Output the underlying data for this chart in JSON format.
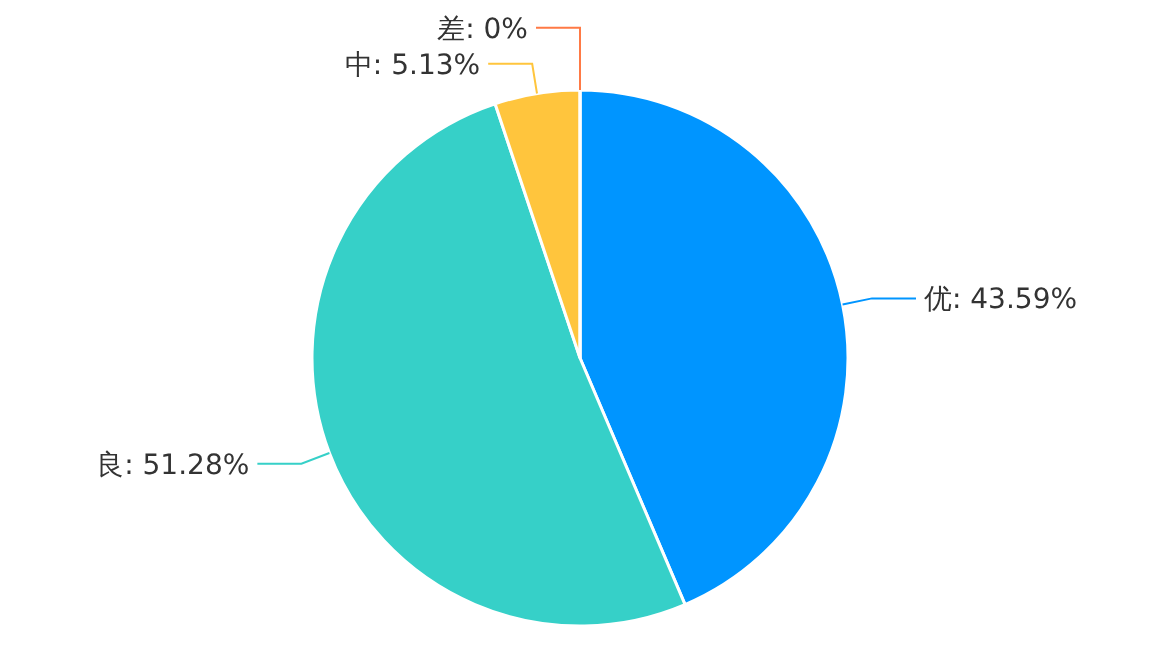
{
  "chart_data": {
    "type": "pie",
    "categories": [
      "优",
      "良",
      "中",
      "差"
    ],
    "values": [
      43.59,
      51.28,
      5.13,
      0
    ],
    "colors": [
      "#0095ff",
      "#36d0c8",
      "#ffc53d",
      "#ff7a45"
    ],
    "value_labels": [
      ": 43.59%",
      ": 51.28%",
      ": 5.13%",
      ": 0%"
    ]
  }
}
